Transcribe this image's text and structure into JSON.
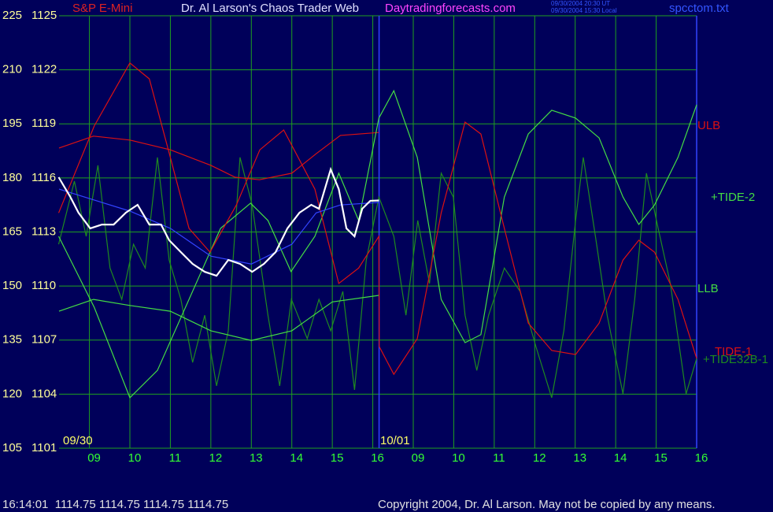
{
  "chart_data": {
    "type": "line",
    "symbol": "S&P E-Mini",
    "title": "Dr. Al Larson's Chaos Trader Web",
    "website": "Daytradingforecasts.com",
    "timestamps": [
      "09/30/2004 20:30 UT",
      "09/30/2004 15:30 Local"
    ],
    "file": "spcctom.txt",
    "days": [
      "09/30",
      "10/01"
    ],
    "status": "16:14:01  1114.75 1114.75 1114.75 1114.75",
    "copyright": "Copyright 2004, Dr. Al Larson. May not be copied by any means.",
    "grid": true,
    "xlim": [
      8.25,
      24
    ],
    "xticks": [
      {
        "value": 9,
        "label": "09"
      },
      10,
      11,
      12,
      13,
      14,
      15,
      16,
      {
        "value": 17,
        "label": "09"
      },
      {
        "value": 18,
        "label": "10"
      },
      {
        "value": 19,
        "label": "11"
      },
      {
        "value": 20,
        "label": "12"
      },
      {
        "value": 21,
        "label": "13"
      },
      {
        "value": 22,
        "label": "14"
      },
      {
        "value": 23,
        "label": "15"
      },
      {
        "value": 24,
        "label": "16"
      }
    ],
    "ylim": [
      105,
      225
    ],
    "yticks": [
      105,
      120,
      135,
      150,
      165,
      180,
      195,
      210,
      225
    ],
    "y2lim": [
      1101,
      1125
    ],
    "y2ticks": [
      1101,
      1104,
      1107,
      1110,
      1113,
      1116,
      1119,
      1122,
      1125
    ],
    "series": [
      {
        "name": "+TIDE32B-1",
        "color": "#1f8a1f",
        "x": [
          8.24,
          8.63,
          8.92,
          9.21,
          9.51,
          9.8,
          10.09,
          10.38,
          10.68,
          10.97,
          11.26,
          11.55,
          11.85,
          12.14,
          12.43,
          12.72,
          13.02,
          13.41,
          13.7,
          13.99,
          14.38,
          14.67,
          14.96,
          15.26,
          15.55,
          15.84,
          16.15,
          16.52,
          16.82,
          17.11,
          17.4,
          17.69,
          17.99,
          18.28,
          18.57,
          18.86,
          19.25,
          19.64,
          20.03,
          20.42,
          20.72,
          21.01,
          21.2,
          21.5,
          21.79,
          22.18,
          22.47,
          22.76,
          23.05,
          23.35,
          23.74,
          24
        ],
        "values": [
          161.6,
          179.1,
          163.8,
          183.5,
          155.0,
          146.3,
          161.6,
          155.0,
          185.7,
          157.2,
          146.3,
          128.8,
          141.9,
          122.3,
          137.6,
          185.7,
          172.5,
          141.9,
          122.3,
          146.3,
          135.4,
          146.3,
          137.6,
          148.5,
          121.2,
          157.2,
          174.7,
          163.8,
          141.9,
          168.2,
          150.7,
          181.3,
          174.7,
          141.9,
          126.6,
          141.9,
          155.0,
          148.5,
          133.2,
          119.0,
          137.6,
          168.2,
          185.7,
          163.8,
          141.9,
          120.1,
          146.3,
          181.3,
          166.0,
          150.7,
          120.1,
          129.9
        ]
      },
      {
        "name": "LLB",
        "color": "#44dd44",
        "x": [
          8.25,
          9.1,
          10,
          11,
          12,
          13,
          14,
          15,
          16.15
        ],
        "values": [
          143.0,
          146.3,
          144.6,
          143.0,
          137.6,
          134.9,
          137.6,
          145.6,
          147.4
        ]
      },
      {
        "name": "ULB",
        "color": "#dd1111",
        "x": [
          8.25,
          9.1,
          10,
          11,
          12,
          12.6,
          13.2,
          14,
          14.6,
          15.2,
          16.15
        ],
        "values": [
          188.3,
          191.6,
          190.5,
          187.8,
          183.5,
          180.2,
          179.5,
          181.3,
          186.7,
          191.8,
          192.6
        ]
      },
      {
        "name": "+TIDE-2",
        "color": "#44dd44",
        "x": [
          8.24,
          9.12,
          10,
          10.68,
          11.46,
          12.24,
          12.98,
          13.41,
          13.98,
          14.57,
          15.16,
          15.65,
          16.15,
          16.52,
          17.1,
          17.69,
          18.28,
          18.67,
          19.25,
          19.84,
          20.42,
          21.01,
          21.59,
          22.18,
          22.57,
          22.96,
          23.54,
          24
        ],
        "values": [
          163.8,
          144.1,
          119.0,
          126.6,
          146.3,
          166.0,
          173.0,
          168.2,
          154.0,
          163.8,
          181.3,
          168.2,
          196.6,
          204.2,
          185.7,
          146.3,
          134.3,
          136.5,
          174.7,
          192.2,
          198.8,
          196.6,
          191.1,
          174.7,
          167.1,
          172.5,
          185.7,
          200.3
        ]
      },
      {
        "name": "TIDE-1",
        "color": "#dd1111",
        "x": [
          8.24,
          9.12,
          10,
          10.48,
          11,
          11.46,
          11.98,
          12.63,
          13.21,
          13.8,
          14.57,
          15.16,
          15.65,
          16.15,
          16.16,
          16.52,
          17.1,
          17.69,
          18.28,
          18.67,
          19.25,
          19.84,
          20.42,
          21.01,
          21.59,
          22.18,
          22.57,
          22.96,
          23.54,
          24
        ],
        "values": [
          170.3,
          194.4,
          211.9,
          207.5,
          185.7,
          166.0,
          159.4,
          172.5,
          187.8,
          193.3,
          176.9,
          150.7,
          155.0,
          163.8,
          133.2,
          125.5,
          135.4,
          170.3,
          195.5,
          192.2,
          166.0,
          139.7,
          132.1,
          131.0,
          139.7,
          157.2,
          162.7,
          159.4,
          146.3,
          129.9
        ]
      },
      {
        "color": "#3344ff",
        "x": [
          8.25,
          10,
          11,
          12,
          13,
          14,
          14.6,
          15.2,
          16.15
        ],
        "values": [
          176.9,
          170.8,
          166.0,
          158.3,
          156.1,
          161.6,
          170.3,
          172.5,
          173.2
        ]
      },
      {
        "color": "#ffffff",
        "axis": "y2",
        "x": [
          8.24,
          8.53,
          8.73,
          9.02,
          9.31,
          9.6,
          9.9,
          10.19,
          10.48,
          10.77,
          10.97,
          11.26,
          11.55,
          11.85,
          12.14,
          12.43,
          12.72,
          13.02,
          13.31,
          13.6,
          13.89,
          14.19,
          14.48,
          14.67,
          14.96,
          15.16,
          15.35,
          15.55,
          15.74,
          15.94,
          16.15
        ],
        "values": [
          1116.04,
          1114.94,
          1114.07,
          1113.2,
          1113.41,
          1113.41,
          1114.07,
          1114.51,
          1113.41,
          1113.41,
          1112.54,
          1111.88,
          1111.23,
          1110.79,
          1110.57,
          1111.45,
          1111.23,
          1110.79,
          1111.23,
          1111.88,
          1113.2,
          1114.07,
          1114.51,
          1114.29,
          1116.47,
          1115.38,
          1113.2,
          1112.76,
          1114.29,
          1114.73,
          1114.75
        ]
      }
    ]
  }
}
